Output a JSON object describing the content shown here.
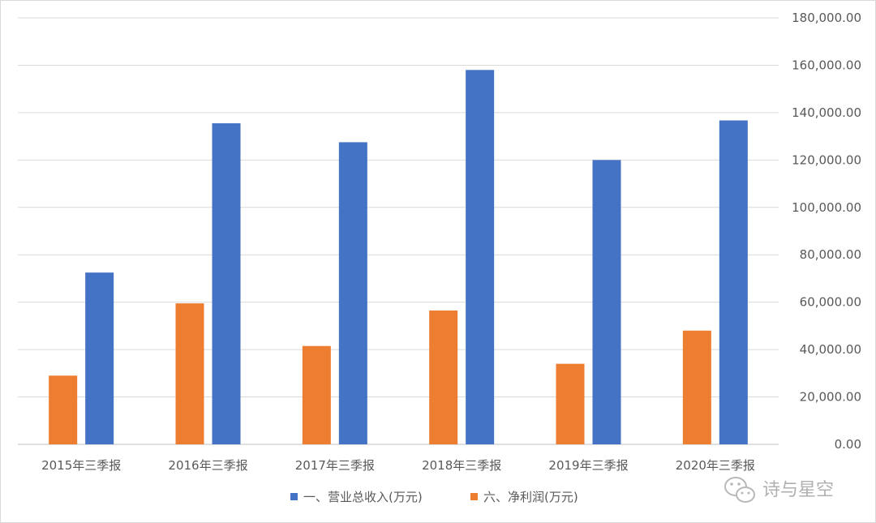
{
  "chart_data": {
    "type": "bar",
    "categories": [
      "2015年三季报",
      "2016年三季报",
      "2017年三季报",
      "2018年三季报",
      "2019年三季报",
      "2020年三季报"
    ],
    "series": [
      {
        "name": "六、净利润(万元)",
        "color": "#ed7d31",
        "values": [
          29000,
          59500,
          41500,
          56500,
          34000,
          48000
        ]
      },
      {
        "name": "一、营业总收入(万元)",
        "color": "#4472c4",
        "values": [
          72500,
          135500,
          127500,
          158000,
          120000,
          136700
        ]
      }
    ],
    "legend_order": [
      1,
      0
    ],
    "y_ticks": [
      "0.00",
      "20,000.00",
      "40,000.00",
      "60,000.00",
      "80,000.00",
      "100,000.00",
      "120,000.00",
      "140,000.00",
      "160,000.00",
      "180,000.00"
    ],
    "ylim": [
      0,
      180000
    ],
    "y_axis_side": "right",
    "grid": true,
    "legend_position": "bottom"
  },
  "watermark": {
    "text": "诗与星空",
    "icon": "wechat-icon"
  }
}
